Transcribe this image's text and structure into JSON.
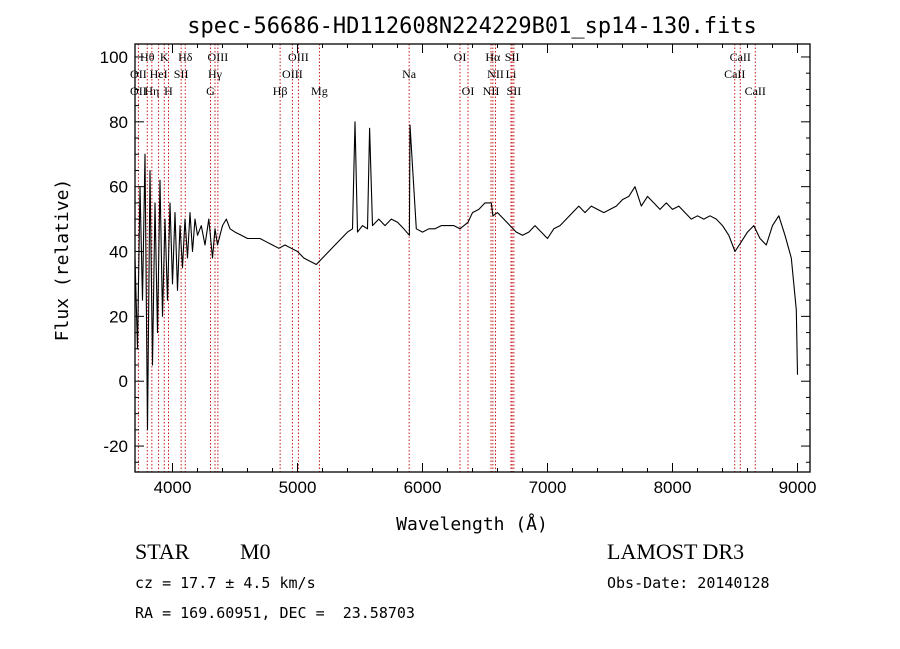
{
  "chart_data": {
    "type": "line",
    "title": "spec-56686-HD112608N224229B01_sp14-130.fits",
    "xlabel": "Wavelength (Å)",
    "ylabel": "Flux (relative)",
    "xlim": [
      3700,
      9100
    ],
    "ylim": [
      -28,
      104
    ],
    "xticks": [
      4000,
      5000,
      6000,
      7000,
      8000,
      9000
    ],
    "yticks": [
      -20,
      0,
      20,
      40,
      60,
      80,
      100
    ],
    "series": [
      {
        "name": "spectrum",
        "x": [
          3700,
          3720,
          3740,
          3760,
          3780,
          3800,
          3820,
          3840,
          3860,
          3880,
          3900,
          3920,
          3940,
          3960,
          3980,
          4000,
          4020,
          4040,
          4060,
          4080,
          4100,
          4120,
          4140,
          4160,
          4180,
          4200,
          4230,
          4260,
          4290,
          4320,
          4340,
          4360,
          4380,
          4400,
          4430,
          4460,
          4500,
          4550,
          4600,
          4650,
          4700,
          4750,
          4800,
          4850,
          4900,
          4950,
          5000,
          5050,
          5100,
          5150,
          5200,
          5250,
          5300,
          5350,
          5400,
          5440,
          5460,
          5480,
          5520,
          5560,
          5577,
          5600,
          5650,
          5700,
          5750,
          5800,
          5850,
          5895,
          5900,
          5950,
          6000,
          6050,
          6100,
          6150,
          6200,
          6250,
          6300,
          6364,
          6400,
          6450,
          6500,
          6550,
          6563,
          6600,
          6650,
          6700,
          6750,
          6800,
          6850,
          6900,
          6950,
          7000,
          7050,
          7100,
          7150,
          7200,
          7250,
          7300,
          7350,
          7400,
          7450,
          7500,
          7550,
          7600,
          7650,
          7700,
          7750,
          7800,
          7850,
          7900,
          7950,
          8000,
          8050,
          8100,
          8150,
          8200,
          8250,
          8300,
          8350,
          8400,
          8450,
          8500,
          8550,
          8600,
          8650,
          8700,
          8750,
          8800,
          8850,
          8900,
          8950,
          8970,
          8990,
          9000
        ],
        "y": [
          38,
          10,
          60,
          25,
          70,
          -15,
          65,
          5,
          55,
          15,
          62,
          20,
          50,
          25,
          55,
          30,
          52,
          28,
          48,
          35,
          50,
          38,
          52,
          40,
          50,
          45,
          48,
          42,
          50,
          38,
          47,
          42,
          45,
          48,
          50,
          47,
          46,
          45,
          44,
          44,
          44,
          43,
          42,
          41,
          42,
          41,
          40,
          38,
          37,
          36,
          38,
          40,
          42,
          44,
          46,
          47,
          80,
          46,
          48,
          47,
          78,
          48,
          50,
          48,
          50,
          49,
          47,
          45,
          79,
          47,
          46,
          47,
          47,
          48,
          48,
          48,
          47,
          49,
          52,
          53,
          55,
          55,
          51,
          52,
          50,
          48,
          46,
          45,
          46,
          48,
          46,
          44,
          47,
          48,
          50,
          52,
          54,
          52,
          54,
          53,
          52,
          53,
          54,
          56,
          57,
          60,
          54,
          57,
          55,
          53,
          55,
          53,
          54,
          52,
          50,
          51,
          50,
          51,
          50,
          48,
          45,
          40,
          43,
          46,
          48,
          44,
          42,
          48,
          51,
          45,
          38,
          30,
          22,
          2
        ]
      }
    ],
    "annotations": [
      {
        "label": "Hθ",
        "x": 3798,
        "row": 1
      },
      {
        "label": "OII",
        "x": 3727,
        "row": 2
      },
      {
        "label": "OII",
        "x": 3727,
        "row": 3
      },
      {
        "label": "Hη",
        "x": 3835,
        "row": 3
      },
      {
        "label": "K",
        "x": 3934,
        "row": 1
      },
      {
        "label": "HeI",
        "x": 3889,
        "row": 2
      },
      {
        "label": "H",
        "x": 3968,
        "row": 3
      },
      {
        "label": "Hδ",
        "x": 4102,
        "row": 1
      },
      {
        "label": "SII",
        "x": 4069,
        "row": 2
      },
      {
        "label": "OIII",
        "x": 4363,
        "row": 1
      },
      {
        "label": "Hγ",
        "x": 4340,
        "row": 2
      },
      {
        "label": "G",
        "x": 4304,
        "row": 3
      },
      {
        "label": "OIII",
        "x": 5007,
        "row": 1
      },
      {
        "label": "OIII",
        "x": 4959,
        "row": 2
      },
      {
        "label": "Hβ",
        "x": 4861,
        "row": 3
      },
      {
        "label": "Mg",
        "x": 5175,
        "row": 3
      },
      {
        "label": "Na",
        "x": 5893,
        "row": 2
      },
      {
        "label": "OI",
        "x": 6300,
        "row": 1
      },
      {
        "label": "OI",
        "x": 6364,
        "row": 3
      },
      {
        "label": "Hα",
        "x": 6563,
        "row": 1
      },
      {
        "label": "SII",
        "x": 6717,
        "row": 1
      },
      {
        "label": "NII",
        "x": 6584,
        "row": 2
      },
      {
        "label": "Li",
        "x": 6708,
        "row": 2
      },
      {
        "label": "NII",
        "x": 6548,
        "row": 3
      },
      {
        "label": "SII",
        "x": 6731,
        "row": 3
      },
      {
        "label": "CaII",
        "x": 8542,
        "row": 1
      },
      {
        "label": "CaII",
        "x": 8498,
        "row": 2
      },
      {
        "label": "CaII",
        "x": 8662,
        "row": 3
      }
    ],
    "line_color": "#000000",
    "marker_color": "#c00000"
  },
  "info": {
    "object_class": "STAR",
    "subclass": "M0",
    "survey": "LAMOST DR3",
    "cz": "cz = 17.7 ± 4.5 km/s",
    "obs_date": "Obs-Date: 20140128",
    "coords": "RA = 169.60951, DEC =  23.58703"
  }
}
